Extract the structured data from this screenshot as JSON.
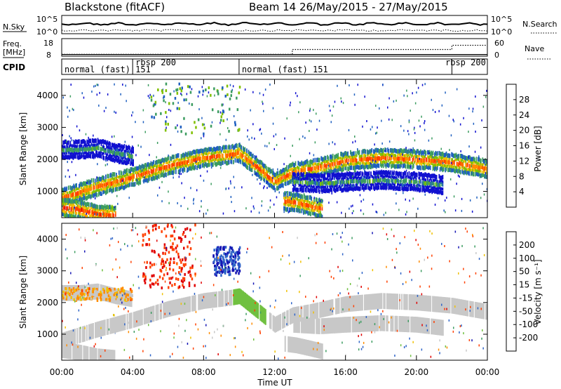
{
  "header": {
    "station": "Blackstone (fitACF)",
    "beam_info": "Beam 14 26/May/2015 - 27/May/2015"
  },
  "noise_panel": {
    "left_label": "N.Sky",
    "right_label": "N.Search",
    "left_ticks": [
      "10^5",
      "10^0"
    ],
    "right_ticks": [
      "10^5",
      "10^0"
    ]
  },
  "freq_panel": {
    "left_label_1": "Freq.",
    "left_label_2": "[MHz]",
    "right_label": "Nave",
    "left_ticks": [
      "18",
      "8"
    ],
    "right_ticks": [
      "60",
      "0"
    ]
  },
  "cpid_panel": {
    "label": "CPID",
    "segments": [
      {
        "name": "normal (fast) 151",
        "start": 0.0,
        "end": 4.0
      },
      {
        "name": "rbsp 200",
        "start": 4.0,
        "end": 10.0
      },
      {
        "name": "normal (fast) 151",
        "start": 10.0,
        "end": 22.0
      },
      {
        "name": "rbsp 200",
        "start": 22.0,
        "end": 24.0
      }
    ]
  },
  "power_colorbar": {
    "label": "Power [dB]",
    "ticks": [
      "28",
      "24",
      "20",
      "16",
      "12",
      "8",
      "4"
    ],
    "colors": [
      "#e00000",
      "#ff4000",
      "#ff8c00",
      "#f0c000",
      "#80c000",
      "#3c9c60",
      "#2060c0",
      "#1010d0"
    ]
  },
  "velocity_colorbar": {
    "label": "Velocity [m s⁻¹]",
    "ticks": [
      "200",
      "100",
      "50",
      "15",
      "-15",
      "-50",
      "-100",
      "-200"
    ],
    "colors": [
      "#1414b4",
      "#2e64c8",
      "#3c9c60",
      "#70c040",
      "#c8c8c8",
      "#f0c000",
      "#ff8c00",
      "#ff4000",
      "#e00000"
    ]
  },
  "x_axis": {
    "label": "Time UT",
    "ticks": [
      "00:00",
      "04:00",
      "08:00",
      "12:00",
      "16:00",
      "20:00",
      "00:00"
    ]
  },
  "chart_data": [
    {
      "type": "heatmap",
      "name": "power",
      "xlabel": "Time UT",
      "ylabel": "Slant Range [km]",
      "xlim": [
        0,
        24
      ],
      "ylim": [
        180,
        4500
      ],
      "yticks": [
        1000,
        2000,
        3000,
        4000
      ],
      "ytick_labels": [
        "1000",
        "2000",
        "3000",
        "4000"
      ],
      "colorbar": "Power [dB]",
      "clim": [
        0,
        32
      ],
      "echo_bands": [
        {
          "t": [
            0,
            2,
            4,
            6,
            8,
            9.5,
            10,
            12,
            13,
            14,
            16,
            18,
            20,
            22,
            24
          ],
          "range_km": [
            800,
            1150,
            1450,
            1800,
            2050,
            2150,
            2200,
            1300,
            1600,
            1700,
            1950,
            2050,
            2000,
            1900,
            1700
          ],
          "power_db": 24
        },
        {
          "t": [
            0,
            1,
            2,
            3,
            4
          ],
          "range_km": [
            2300,
            2300,
            2350,
            2200,
            2100
          ],
          "power_db": 10
        },
        {
          "t": [
            13,
            14.5,
            16,
            18,
            20,
            21.5
          ],
          "range_km": [
            1300,
            1250,
            1300,
            1350,
            1300,
            1200
          ],
          "power_db": 10
        },
        {
          "t": [
            0,
            1,
            2,
            3
          ],
          "range_km": [
            500,
            420,
            300,
            250
          ],
          "power_db": 26
        },
        {
          "t": [
            12.5,
            13.2,
            14,
            14.7
          ],
          "range_km": [
            700,
            650,
            550,
            450
          ],
          "power_db": 24
        }
      ]
    },
    {
      "type": "heatmap",
      "name": "velocity",
      "xlabel": "Time UT",
      "ylabel": "Slant Range [km]",
      "xlim": [
        0,
        24
      ],
      "ylim": [
        180,
        4500
      ],
      "yticks": [
        1000,
        2000,
        3000,
        4000
      ],
      "ytick_labels": [
        "1000",
        "2000",
        "3000",
        "4000"
      ],
      "colorbar": "Velocity [m s-1]",
      "clim": [
        -250,
        250
      ],
      "ground_scatter_note": "grey = |v| < 15",
      "echo_regions": [
        {
          "t": [
            4.5,
            7.5
          ],
          "range_km": [
            2500,
            4500
          ],
          "velocity": -200
        },
        {
          "t": [
            8.5,
            10.0
          ],
          "range_km": [
            2900,
            3800
          ],
          "velocity": 200
        },
        {
          "t": [
            0,
            24
          ],
          "range_km": [
            500,
            2500
          ],
          "velocity": 0
        },
        {
          "t": [
            0,
            4
          ],
          "range_km": [
            2100,
            2500
          ],
          "velocity": -50
        }
      ]
    }
  ]
}
